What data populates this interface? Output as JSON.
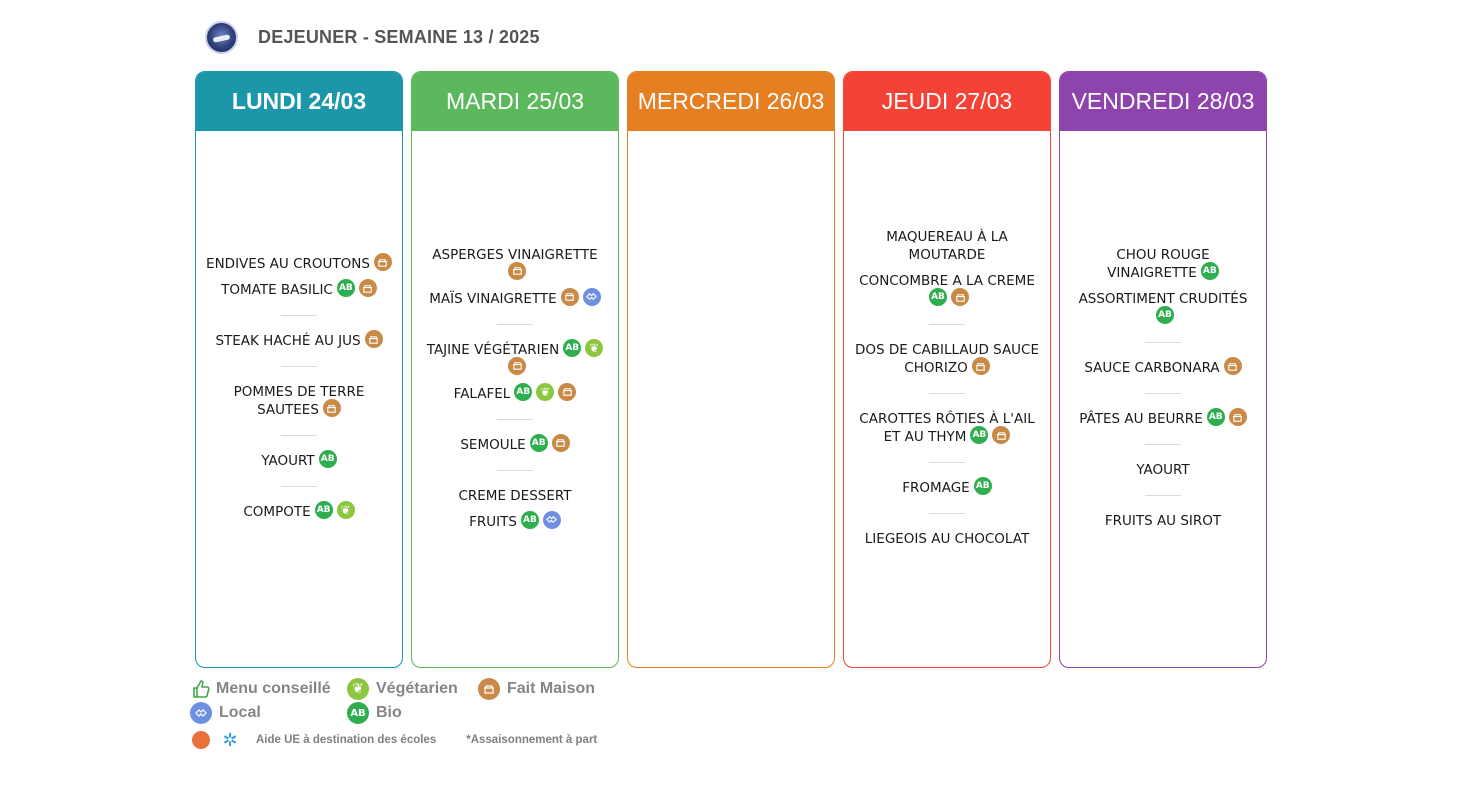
{
  "header": {
    "title": "DEJEUNER - SEMAINE 13 / 2025"
  },
  "colors": {
    "lundi": "#1b97a9",
    "mardi": "#5cb85c",
    "mercredi": "#e67e22",
    "jeudi": "#f44336",
    "vendredi": "#8e44ad"
  },
  "days": [
    {
      "label": "LUNDI 24/03",
      "groups": [
        [
          {
            "name": "ENDIVES AU CROUTONS",
            "icons": [
              "fait-maison"
            ]
          },
          {
            "name": "TOMATE BASILIC",
            "icons": [
              "bio",
              "fait-maison"
            ]
          }
        ],
        [
          {
            "name": "STEAK HACHÉ AU JUS",
            "icons": [
              "fait-maison"
            ]
          }
        ],
        [
          {
            "name": "POMMES DE TERRE SAUTEES",
            "icons": [
              "fait-maison"
            ]
          }
        ],
        [
          {
            "name": "YAOURT",
            "icons": [
              "bio"
            ]
          }
        ],
        [
          {
            "name": "COMPOTE",
            "icons": [
              "bio",
              "vegetarien"
            ]
          }
        ]
      ]
    },
    {
      "label": "MARDI 25/03",
      "groups": [
        [
          {
            "name": "ASPERGES VINAIGRETTE",
            "icons": [
              "fait-maison"
            ]
          },
          {
            "name": "MAÏS VINAIGRETTE",
            "icons": [
              "fait-maison",
              "local"
            ]
          }
        ],
        [
          {
            "name": "TAJINE VÉGÉTARIEN",
            "icons": [
              "bio",
              "vegetarien",
              "fait-maison"
            ]
          },
          {
            "name": "FALAFEL",
            "icons": [
              "bio",
              "vegetarien",
              "fait-maison"
            ]
          }
        ],
        [
          {
            "name": "SEMOULE",
            "icons": [
              "bio",
              "fait-maison"
            ]
          }
        ],
        [
          {
            "name": "CREME DESSERT",
            "icons": []
          },
          {
            "name": "FRUITS",
            "icons": [
              "bio",
              "local"
            ]
          }
        ]
      ]
    },
    {
      "label": "MERCREDI 26/03",
      "groups": []
    },
    {
      "label": "JEUDI 27/03",
      "groups": [
        [
          {
            "name": "MAQUEREAU À LA MOUTARDE",
            "icons": []
          },
          {
            "name": "CONCOMBRE A LA CREME",
            "icons": [
              "bio",
              "fait-maison"
            ]
          }
        ],
        [
          {
            "name": "DOS DE CABILLAUD SAUCE CHORIZO",
            "icons": [
              "fait-maison"
            ]
          }
        ],
        [
          {
            "name": "CAROTTES RÔTIES À L'AIL ET AU THYM",
            "icons": [
              "bio",
              "fait-maison"
            ]
          }
        ],
        [
          {
            "name": "FROMAGE",
            "icons": [
              "bio"
            ]
          }
        ],
        [
          {
            "name": "LIEGEOIS AU CHOCOLAT",
            "icons": []
          }
        ]
      ]
    },
    {
      "label": "VENDREDI 28/03",
      "groups": [
        [
          {
            "name": "CHOU ROUGE VINAIGRETTE",
            "icons": [
              "bio"
            ]
          },
          {
            "name": "ASSORTIMENT CRUDITÉS",
            "icons": [
              "bio"
            ]
          }
        ],
        [
          {
            "name": "SAUCE CARBONARA",
            "icons": [
              "fait-maison"
            ]
          }
        ],
        [
          {
            "name": "PÂTES AU BEURRE",
            "icons": [
              "bio",
              "fait-maison"
            ]
          }
        ],
        [
          {
            "name": "YAOURT",
            "icons": []
          }
        ],
        [
          {
            "name": "FRUITS AU SIROT",
            "icons": []
          }
        ]
      ]
    }
  ],
  "legend": {
    "menu_conseille": "Menu conseillé",
    "vegetarien": "Végétarien",
    "fait_maison": "Fait Maison",
    "local": "Local",
    "bio": "Bio"
  },
  "footer": {
    "aide_ue": "Aide UE à destination des écoles",
    "assaisonnement": "*Assaisonnement à part"
  }
}
